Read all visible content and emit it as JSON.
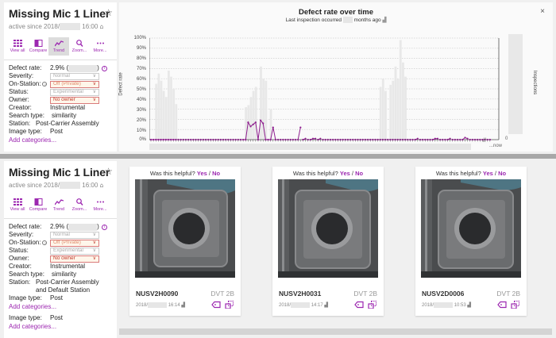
{
  "top_section": {
    "sidebar": {
      "title": "Missing Mic 1 Liner",
      "active_since_prefix": "active since 2018/",
      "active_since_time": "16:00",
      "toolbar": [
        {
          "label": "View all",
          "icon": "grid-icon"
        },
        {
          "label": "Compare",
          "icon": "compare-icon"
        },
        {
          "label": "Trend",
          "icon": "trend-icon",
          "active": true
        },
        {
          "label": "Zoom...",
          "icon": "zoom-icon"
        },
        {
          "label": "More...",
          "icon": "more-icon"
        }
      ],
      "fields": {
        "defect_rate_label": "Defect rate:",
        "defect_rate_value": "2.9% (",
        "defect_rate_close": ")",
        "severity_label": "Severity:",
        "severity_value": "Normal",
        "on_station_label": "On-Station:",
        "on_station_value": "Off (Private)",
        "status_label": "Status:",
        "status_value": "Experimental",
        "owner_label": "Owner:",
        "owner_value": "No owner",
        "creator_label": "Creator:",
        "creator_value": "Instrumental",
        "search_type_label": "Search type:",
        "search_type_value": "similarity",
        "station_label": "Station:",
        "station_value": "Post-Carrier Assembly",
        "image_type_label": "Image type:",
        "image_type_value": "Post"
      },
      "add_categories": "Add categories..."
    },
    "chart": {
      "title": "Defect rate over time",
      "subtitle_prefix": "Last inspection occurred",
      "subtitle_suffix": "months ago",
      "close": "×",
      "now_label": "...now",
      "right_axis_label": "Inspections",
      "right_axis_zero": "0"
    }
  },
  "bottom_section": {
    "sidebar": {
      "title": "Missing Mic 1 Liner",
      "active_since_prefix": "active since 2018/",
      "active_since_time": "16:00",
      "toolbar": [
        {
          "label": "View all",
          "icon": "grid-icon"
        },
        {
          "label": "Compare",
          "icon": "compare-icon"
        },
        {
          "label": "Trend",
          "icon": "trend-icon"
        },
        {
          "label": "Zoom...",
          "icon": "zoom-icon"
        },
        {
          "label": "More...",
          "icon": "more-icon"
        }
      ],
      "fields": {
        "defect_rate_label": "Defect rate:",
        "defect_rate_value": "2.9% (",
        "defect_rate_close": ")",
        "severity_label": "Severity:",
        "severity_value": "Normal",
        "on_station_label": "On-Station:",
        "on_station_value": "Off (Private)",
        "status_label": "Status:",
        "status_value": "Experimental",
        "owner_label": "Owner:",
        "owner_value": "No owner",
        "creator_label": "Creator:",
        "creator_value": "Instrumental",
        "search_type_label": "Search type:",
        "search_type_value": "similarity",
        "station_label": "Station:",
        "station_value_line1": "Post-Carrier Assembly",
        "station_value_line2": "and Default Station",
        "image_type_label": "Image type:",
        "image_type_value": "Post",
        "image_type_label_2": "Image type:",
        "image_type_value_2": "Post"
      },
      "add_categories": "Add categories...",
      "add_categories_2": "Add categories..."
    },
    "image_cards": [
      {
        "helpful_q": "Was this helpful?",
        "yes": "Yes",
        "sep": "/",
        "no": "No",
        "serial": "NUSV2H0090",
        "config": "DVT 2B",
        "date_prefix": "2018/",
        "time": "16:14"
      },
      {
        "helpful_q": "Was this helpful?",
        "yes": "Yes",
        "sep": "/",
        "no": "No",
        "serial": "NUSV2H0031",
        "config": "DVT 2B",
        "date_prefix": "2018/",
        "time": "14:17"
      },
      {
        "helpful_q": "Was this helpful?",
        "yes": "Yes",
        "sep": "/",
        "no": "No",
        "serial": "NUSV2D0006",
        "config": "DVT 2B",
        "date_prefix": "2018/",
        "time": "10:53"
      }
    ]
  },
  "colors": {
    "accent": "#9c27b0",
    "warn_border": "#d97a7a",
    "warn_bg": "#fff6ea",
    "bar_gray": "#e8e8e8",
    "line": "#8e1f8e"
  },
  "chart_data": {
    "type": "line",
    "title": "Defect rate over time",
    "subtitle": "Last inspection occurred [redacted] months ago",
    "xlabel": "",
    "ylabel": "Defect rate",
    "y2label": "Inspections",
    "ylim": [
      0,
      100
    ],
    "yticks": [
      "0%",
      "10%",
      "20%",
      "30%",
      "40%",
      "50%",
      "60%",
      "70%",
      "80%",
      "90%",
      "100%"
    ],
    "x_end_label": "...now",
    "grid": true,
    "series": [
      {
        "name": "Defect rate (%)",
        "values": [
          0,
          0,
          0,
          0,
          0,
          0,
          0,
          0,
          0,
          0,
          0,
          0,
          0,
          0,
          0,
          0,
          0,
          0,
          0,
          0,
          0,
          0,
          0,
          0,
          0,
          0,
          0,
          0,
          0,
          0,
          0,
          0,
          0,
          0,
          0,
          0,
          0,
          0,
          0,
          17,
          13,
          15,
          17,
          0,
          19,
          16,
          0,
          0,
          0,
          12,
          0,
          0,
          0,
          0,
          0,
          0,
          0,
          0,
          0,
          0,
          12,
          0,
          1,
          0,
          0,
          1,
          1,
          0,
          1,
          0,
          0,
          0,
          0,
          0,
          0,
          0,
          0,
          0,
          0,
          0,
          0,
          0,
          0,
          0,
          0,
          0,
          0,
          0,
          0,
          0,
          0,
          0,
          0,
          0,
          0,
          0,
          0,
          0,
          0,
          0,
          0,
          0,
          0,
          0,
          0,
          0,
          0,
          1,
          0,
          0,
          0,
          0,
          0,
          0,
          1,
          1,
          0,
          0,
          0,
          0,
          1,
          0,
          0,
          0,
          0,
          0,
          2,
          1,
          0,
          0,
          0,
          0,
          0,
          0,
          0,
          0,
          0
        ]
      },
      {
        "name": "Inspections (relative bar height %)",
        "values": [
          0,
          0,
          55,
          65,
          58,
          48,
          42,
          68,
          62,
          50,
          35,
          0,
          0,
          0,
          0,
          0,
          0,
          0,
          0,
          0,
          0,
          0,
          0,
          0,
          0,
          0,
          0,
          0,
          0,
          0,
          0,
          0,
          0,
          0,
          0,
          0,
          0,
          0,
          32,
          34,
          42,
          48,
          52,
          0,
          72,
          60,
          58,
          0,
          30,
          0,
          0,
          0,
          0,
          0,
          0,
          0,
          0,
          0,
          0,
          0,
          0,
          0,
          0,
          0,
          0,
          0,
          0,
          0,
          0,
          0,
          0,
          0,
          0,
          0,
          0,
          0,
          0,
          0,
          0,
          0,
          0,
          0,
          0,
          0,
          0,
          0,
          0,
          0,
          0,
          0,
          0,
          0,
          52,
          60,
          48,
          0,
          54,
          58,
          72,
          60,
          98,
          76,
          62,
          0,
          0,
          0,
          0,
          0,
          0,
          0,
          0,
          0,
          0,
          0,
          0,
          0,
          0,
          0,
          0,
          0,
          0,
          0,
          0,
          0,
          0,
          0,
          0,
          0,
          0,
          0,
          0,
          0,
          0,
          0,
          0,
          0,
          0
        ]
      }
    ]
  }
}
